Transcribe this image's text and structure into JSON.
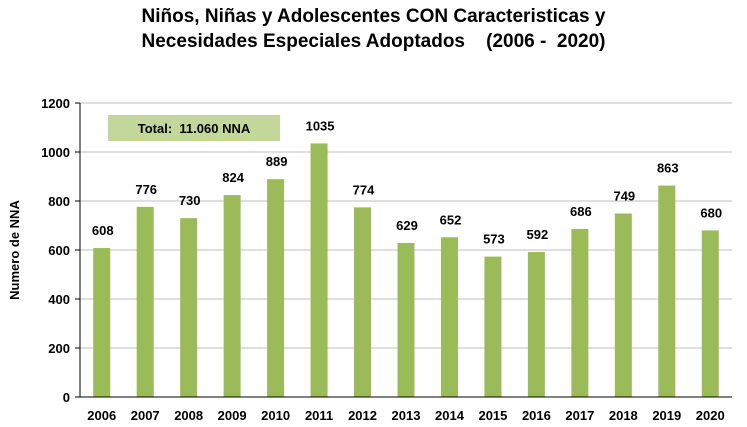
{
  "chart_data": {
    "type": "bar",
    "title_line1": "Niños, Niñas y Adolescentes CON Caracteristicas y",
    "title_line2": "Necesidades Especiales Adoptados    (2006 -  2020)",
    "ylabel": "Numero de NNA",
    "xlabel": "",
    "ylim": [
      0,
      1200
    ],
    "yticks": [
      0,
      200,
      400,
      600,
      800,
      1000,
      1200
    ],
    "yticks_text": [
      "0",
      "200",
      "400",
      "600",
      "800",
      "1000",
      "1200"
    ],
    "categories": [
      "2006",
      "2007",
      "2008",
      "2009",
      "2010",
      "2011",
      "2012",
      "2013",
      "2014",
      "2015",
      "2016",
      "2017",
      "2018",
      "2019",
      "2020"
    ],
    "values": [
      608,
      776,
      730,
      824,
      889,
      1035,
      774,
      629,
      652,
      573,
      592,
      686,
      749,
      863,
      680
    ],
    "grid": true,
    "bar_color": "#9bbb59",
    "annotation": "Total:  11.060 NNA",
    "annotation_bg": "#c4d79b"
  }
}
